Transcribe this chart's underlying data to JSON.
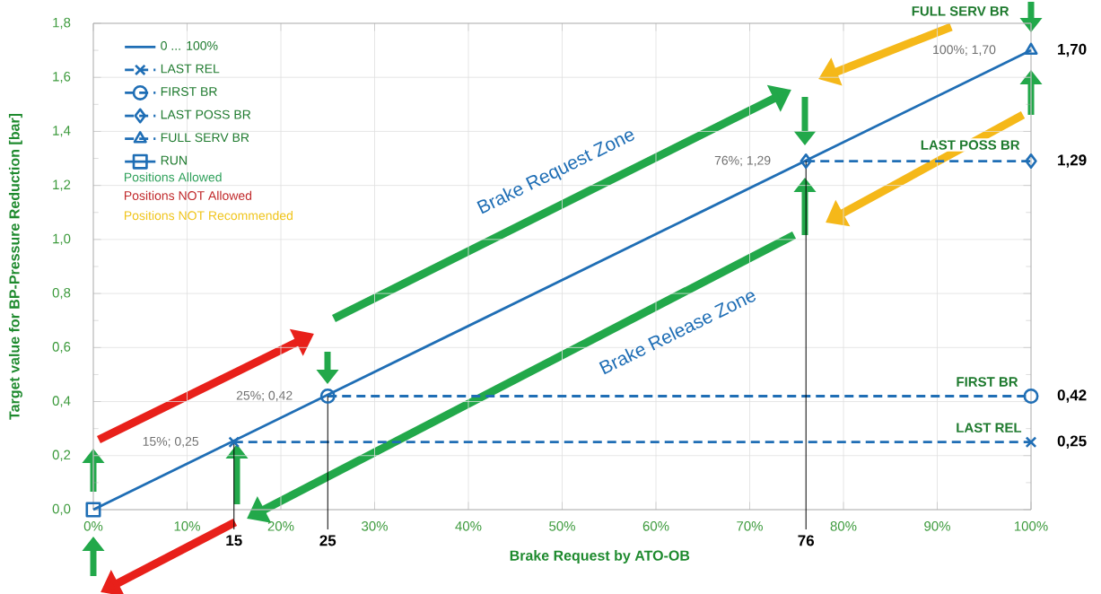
{
  "chart_data": {
    "type": "line",
    "xlabel": "Brake Request by ATO-OB",
    "ylabel": "Target value for BP-Pressure Reduction [bar]",
    "xlim": [
      0,
      100
    ],
    "ylim": [
      0,
      1.8
    ],
    "xticks": [
      {
        "value": 0,
        "label": "0%"
      },
      {
        "value": 10,
        "label": "10%"
      },
      {
        "value": 20,
        "label": "20%"
      },
      {
        "value": 30,
        "label": "30%"
      },
      {
        "value": 40,
        "label": "40%"
      },
      {
        "value": 50,
        "label": "50%"
      },
      {
        "value": 60,
        "label": "60%"
      },
      {
        "value": 70,
        "label": "70%"
      },
      {
        "value": 80,
        "label": "80%"
      },
      {
        "value": 90,
        "label": "90%"
      },
      {
        "value": 100,
        "label": "100%"
      }
    ],
    "yticks": [
      {
        "value": 0,
        "label": "0,0"
      },
      {
        "value": 0.2,
        "label": "0,2"
      },
      {
        "value": 0.4,
        "label": "0,4"
      },
      {
        "value": 0.6,
        "label": "0,6"
      },
      {
        "value": 0.8,
        "label": "0,8"
      },
      {
        "value": 1.0,
        "label": "1,0"
      },
      {
        "value": 1.2,
        "label": "1,2"
      },
      {
        "value": 1.4,
        "label": "1,4"
      },
      {
        "value": 1.6,
        "label": "1,6"
      },
      {
        "value": 1.8,
        "label": "1,8"
      }
    ],
    "grid": true,
    "legend": "top left",
    "series": [
      {
        "name": "0 ... 100%",
        "color": "#1f6eb5",
        "x": [
          0,
          100
        ],
        "values": [
          0,
          1.7
        ],
        "marker": "none",
        "line_style": "solid"
      },
      {
        "name": "LAST REL",
        "color": "#1f6eb5",
        "x": [
          15,
          100
        ],
        "values": [
          0.25,
          0.25
        ],
        "marker": "cross",
        "line_style": "dashed"
      },
      {
        "name": "FIRST BR",
        "color": "#1f6eb5",
        "x": [
          25,
          100
        ],
        "values": [
          0.42,
          0.42
        ],
        "marker": "circle",
        "line_style": "dashed"
      },
      {
        "name": "LAST POSS BR",
        "color": "#1f6eb5",
        "x": [
          76,
          100
        ],
        "values": [
          1.29,
          1.29
        ],
        "marker": "diamond",
        "line_style": "dashed"
      },
      {
        "name": "FULL SERV BR",
        "color": "#1f6eb5",
        "x": [
          100
        ],
        "values": [
          1.7
        ],
        "marker": "triangle",
        "line_style": "dashed"
      },
      {
        "name": "RUN",
        "color": "#1f6eb5",
        "x": [
          0
        ],
        "values": [
          0
        ],
        "marker": "square",
        "line_style": "solid"
      }
    ],
    "annotations": [
      {
        "text": "15%; 0,25",
        "x": 15,
        "y": 0.25
      },
      {
        "text": "25%; 0,42",
        "x": 25,
        "y": 0.42
      },
      {
        "text": "76%; 1,29",
        "x": 76,
        "y": 1.29
      },
      {
        "text": "100%; 1,70",
        "x": 100,
        "y": 1.7
      },
      {
        "text": "0,25",
        "x": 100,
        "y": 0.25
      },
      {
        "text": "0,42",
        "x": 100,
        "y": 0.42
      },
      {
        "text": "1,29",
        "x": 100,
        "y": 1.29
      },
      {
        "text": "1,70",
        "x": 100,
        "y": 1.7
      },
      {
        "text": "LAST REL",
        "x": 100,
        "y": 0.25
      },
      {
        "text": "FIRST BR",
        "x": 100,
        "y": 0.42
      },
      {
        "text": "LAST POSS BR",
        "x": 100,
        "y": 1.29
      },
      "FULL SERV BR",
      {
        "text": "15",
        "x": 15,
        "y": 0.25
      },
      {
        "text": "25",
        "x": 25,
        "y": 0.42
      },
      {
        "text": "76",
        "x": 76,
        "y": 1.29
      },
      "Brake Request Zone",
      "Brake Release Zone",
      "Positions  Allowed",
      "Positions  NOT Allowed",
      "Positions  NOT Recommended"
    ]
  }
}
